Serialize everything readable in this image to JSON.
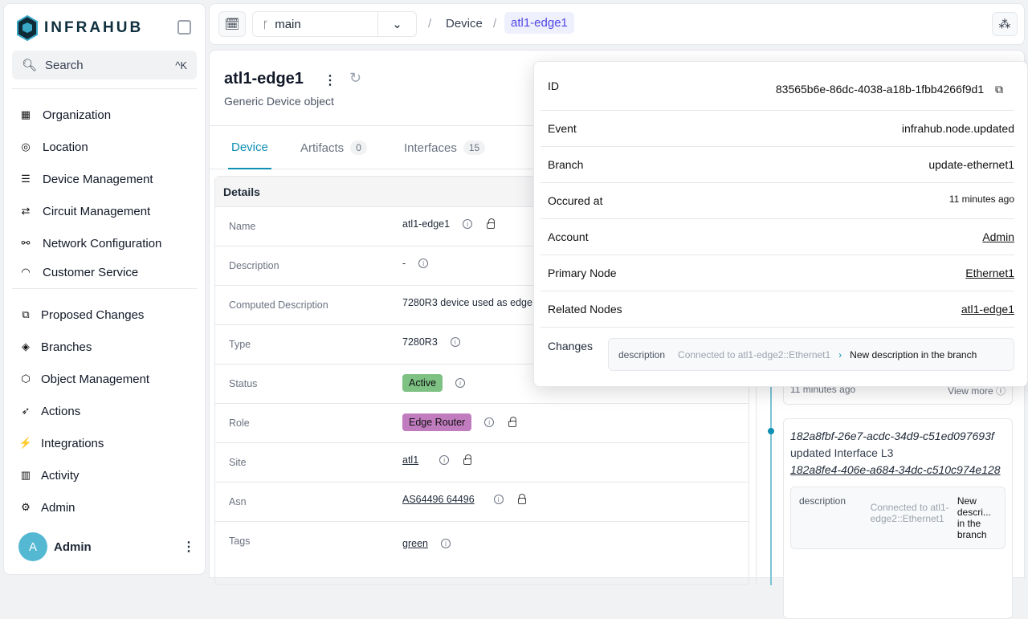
{
  "sidebar": {
    "brand": "INFRAHUB",
    "search": {
      "label": "Search",
      "shortcut": "^K"
    },
    "items": [
      {
        "label": "Organization",
        "icon": "building-icon"
      },
      {
        "label": "Location",
        "icon": "map-pin-icon"
      },
      {
        "label": "Device Management",
        "icon": "server-icon"
      },
      {
        "label": "Circuit Management",
        "icon": "route-icon"
      },
      {
        "label": "Network Configuration",
        "icon": "network-icon"
      },
      {
        "label": "Customer Service",
        "icon": "gauge-icon"
      }
    ],
    "bottom_items": [
      {
        "label": "Proposed Changes",
        "icon": "git-compare-icon"
      },
      {
        "label": "Branches",
        "icon": "layers-icon"
      },
      {
        "label": "Object Management",
        "icon": "cube-icon"
      },
      {
        "label": "Actions",
        "icon": "rocket-icon"
      },
      {
        "label": "Integrations",
        "icon": "plug-icon"
      },
      {
        "label": "Activity",
        "icon": "bar-chart-icon"
      },
      {
        "label": "Admin",
        "icon": "gear-icon"
      }
    ],
    "user": {
      "initial": "A",
      "name": "Admin"
    }
  },
  "topbar": {
    "branch": "main",
    "breadcrumb": [
      "Device",
      "atl1-edge1"
    ]
  },
  "object": {
    "title": "atl1-edge1",
    "subtitle": "Generic Device object",
    "tabs": [
      {
        "label": "Device",
        "count": null
      },
      {
        "label": "Artifacts",
        "count": "0"
      },
      {
        "label": "Interfaces",
        "count": "15"
      }
    ],
    "details_title": "Details",
    "fields": [
      {
        "k": "Name",
        "v": "atl1-edge1"
      },
      {
        "k": "Description",
        "v": "-"
      },
      {
        "k": "Computed Description",
        "v": "7280R3 device used as edge"
      },
      {
        "k": "Type",
        "v": "7280R3"
      },
      {
        "k": "Status",
        "v": "Active",
        "color": "#7dc183"
      },
      {
        "k": "Role",
        "v": "Edge Router",
        "color": "#c07cbe"
      },
      {
        "k": "Site",
        "v": "atl1"
      },
      {
        "k": "Asn",
        "v": "AS64496 64496"
      },
      {
        "k": "Tags",
        "v": "green"
      }
    ]
  },
  "timeline": {
    "card1": {
      "time": "11 minutes ago",
      "view_more": "View more"
    },
    "card2": {
      "id": "182a8fbf-26e7-acdc-34d9-c51ed097693f",
      "action": "updated Interface L3",
      "node": "182a8fe4-406e-a684-34dc-c510c974e128",
      "change": {
        "attr": "description",
        "old": "Connected to atl1-edge2::Ethernet1",
        "new": "New descri... in the branch"
      }
    }
  },
  "popover": {
    "rows": [
      {
        "k": "ID",
        "v": "83565b6e-86dc-4038-a18b-1fbb4266f9d1"
      },
      {
        "k": "Event",
        "v": "infrahub.node.updated"
      },
      {
        "k": "Branch",
        "v": "update-ethernet1"
      },
      {
        "k": "Occured at",
        "v": "11 minutes ago"
      },
      {
        "k": "Account",
        "v": "Admin"
      },
      {
        "k": "Primary Node",
        "v": "Ethernet1"
      },
      {
        "k": "Related Nodes",
        "v": "atl1-edge1"
      }
    ],
    "changes_label": "Changes",
    "change": {
      "attr": "description",
      "old": "Connected to atl1-edge2::Ethernet1",
      "new": "New description in the branch"
    }
  }
}
